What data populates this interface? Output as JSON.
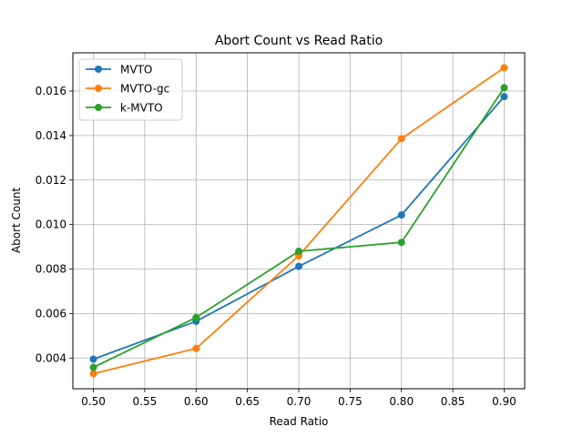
{
  "chart_data": {
    "type": "line",
    "title": "Abort Count vs Read Ratio",
    "xlabel": "Read Ratio",
    "ylabel": "Abort Count",
    "x": [
      0.5,
      0.6,
      0.7,
      0.8,
      0.9
    ],
    "xlim": [
      0.48,
      0.92
    ],
    "ylim": [
      0.00262,
      0.01772
    ],
    "xticks": [
      0.5,
      0.55,
      0.6,
      0.65,
      0.7,
      0.75,
      0.8,
      0.85,
      0.9
    ],
    "xtick_labels": [
      "0.50",
      "0.55",
      "0.60",
      "0.65",
      "0.70",
      "0.75",
      "0.80",
      "0.85",
      "0.90"
    ],
    "yticks": [
      0.004,
      0.006,
      0.008,
      0.01,
      0.012,
      0.014,
      0.016
    ],
    "ytick_labels": [
      "0.004",
      "0.006",
      "0.008",
      "0.010",
      "0.012",
      "0.014",
      "0.016"
    ],
    "grid": true,
    "legend_position": "top-left",
    "series": [
      {
        "name": "MVTO",
        "color": "#1f77b4",
        "values": [
          0.00395,
          0.00565,
          0.00812,
          0.01043,
          0.01575
        ]
      },
      {
        "name": "MVTO-gc",
        "color": "#ff7f0e",
        "values": [
          0.0033,
          0.00443,
          0.0086,
          0.01386,
          0.01705
        ]
      },
      {
        "name": "k-MVTO",
        "color": "#2ca02c",
        "values": [
          0.00358,
          0.00582,
          0.0088,
          0.0092,
          0.01615
        ]
      }
    ]
  }
}
